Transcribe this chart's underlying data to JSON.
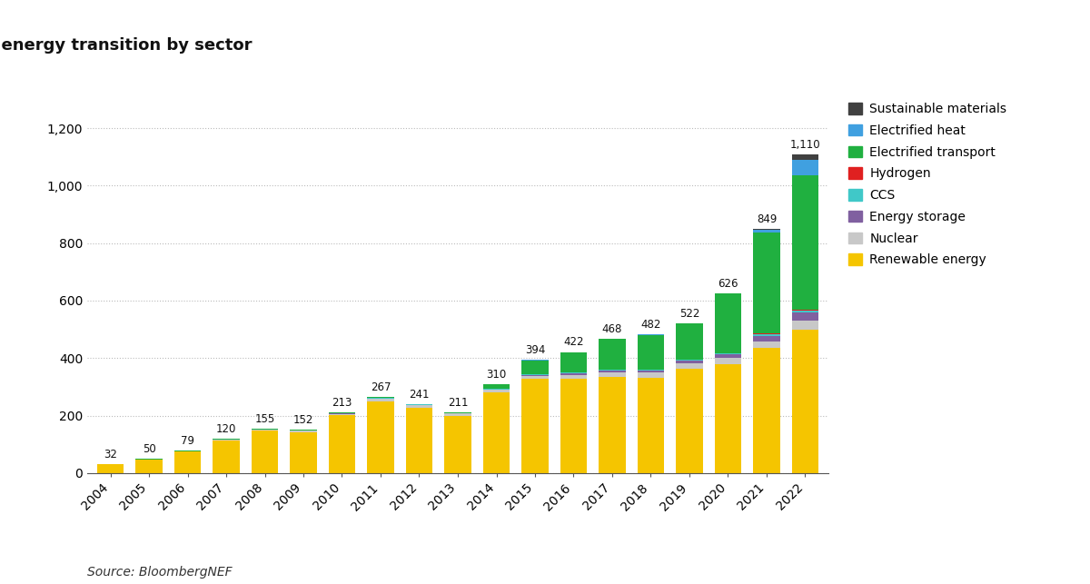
{
  "source": "Source: BloombergNEF",
  "years": [
    "2004",
    "2005",
    "2006",
    "2007",
    "2008",
    "2009",
    "2010",
    "2011",
    "2012",
    "2013",
    "2014",
    "2015",
    "2016",
    "2017",
    "2018",
    "2019",
    "2020",
    "2021",
    "2022"
  ],
  "totals": [
    32,
    50,
    79,
    120,
    155,
    152,
    213,
    267,
    241,
    211,
    310,
    394,
    422,
    468,
    482,
    522,
    626,
    849,
    1110
  ],
  "sectors": {
    "Renewable energy": [
      30,
      47,
      74,
      112,
      147,
      143,
      201,
      250,
      228,
      200,
      281,
      328,
      328,
      334,
      332,
      363,
      378,
      434,
      499
    ],
    "Nuclear": [
      1,
      1,
      2,
      3,
      3,
      4,
      5,
      8,
      8,
      7,
      8,
      10,
      14,
      16,
      17,
      19,
      22,
      24,
      31
    ],
    "Energy storage": [
      0,
      0,
      0,
      1,
      1,
      1,
      1,
      2,
      2,
      1,
      2,
      4,
      6,
      7,
      8,
      9,
      12,
      20,
      29
    ],
    "CCS": [
      0,
      0,
      0,
      0,
      0,
      0,
      0,
      1,
      1,
      1,
      1,
      2,
      3,
      4,
      4,
      4,
      4,
      5,
      6
    ],
    "Hydrogen": [
      0,
      0,
      0,
      0,
      0,
      0,
      0,
      0,
      0,
      0,
      0,
      0,
      0,
      0,
      0,
      1,
      1,
      2,
      4
    ],
    "Electrified transport": [
      0,
      1,
      2,
      3,
      3,
      3,
      5,
      5,
      2,
      2,
      16,
      47,
      68,
      105,
      119,
      124,
      207,
      352,
      466
    ],
    "Electrified heat": [
      0,
      0,
      0,
      0,
      0,
      0,
      0,
      0,
      0,
      0,
      1,
      2,
      2,
      2,
      2,
      2,
      2,
      9,
      54
    ],
    "Sustainable materials": [
      0,
      0,
      0,
      0,
      0,
      0,
      0,
      0,
      0,
      0,
      0,
      0,
      0,
      0,
      0,
      0,
      0,
      3,
      21
    ]
  },
  "colors": {
    "Renewable energy": "#F5C500",
    "Nuclear": "#C8C8C8",
    "Energy storage": "#8060A0",
    "CCS": "#40C8C8",
    "Hydrogen": "#E02020",
    "Electrified transport": "#20B040",
    "Electrified heat": "#40A0E0",
    "Sustainable materials": "#404040"
  },
  "legend_order": [
    "Sustainable materials",
    "Electrified heat",
    "Electrified transport",
    "Hydrogen",
    "CCS",
    "Energy storage",
    "Nuclear",
    "Renewable energy"
  ],
  "ylim": [
    0,
    1280
  ],
  "yticks": [
    0,
    200,
    400,
    600,
    800,
    1000,
    1200
  ],
  "ytick_labels": [
    "0",
    "200",
    "400",
    "600",
    "800",
    "1,000",
    "1,200"
  ],
  "background_color": "#ffffff",
  "title_fontsize": 13,
  "tick_fontsize": 10,
  "source_fontsize": 10,
  "bar_width": 0.7
}
